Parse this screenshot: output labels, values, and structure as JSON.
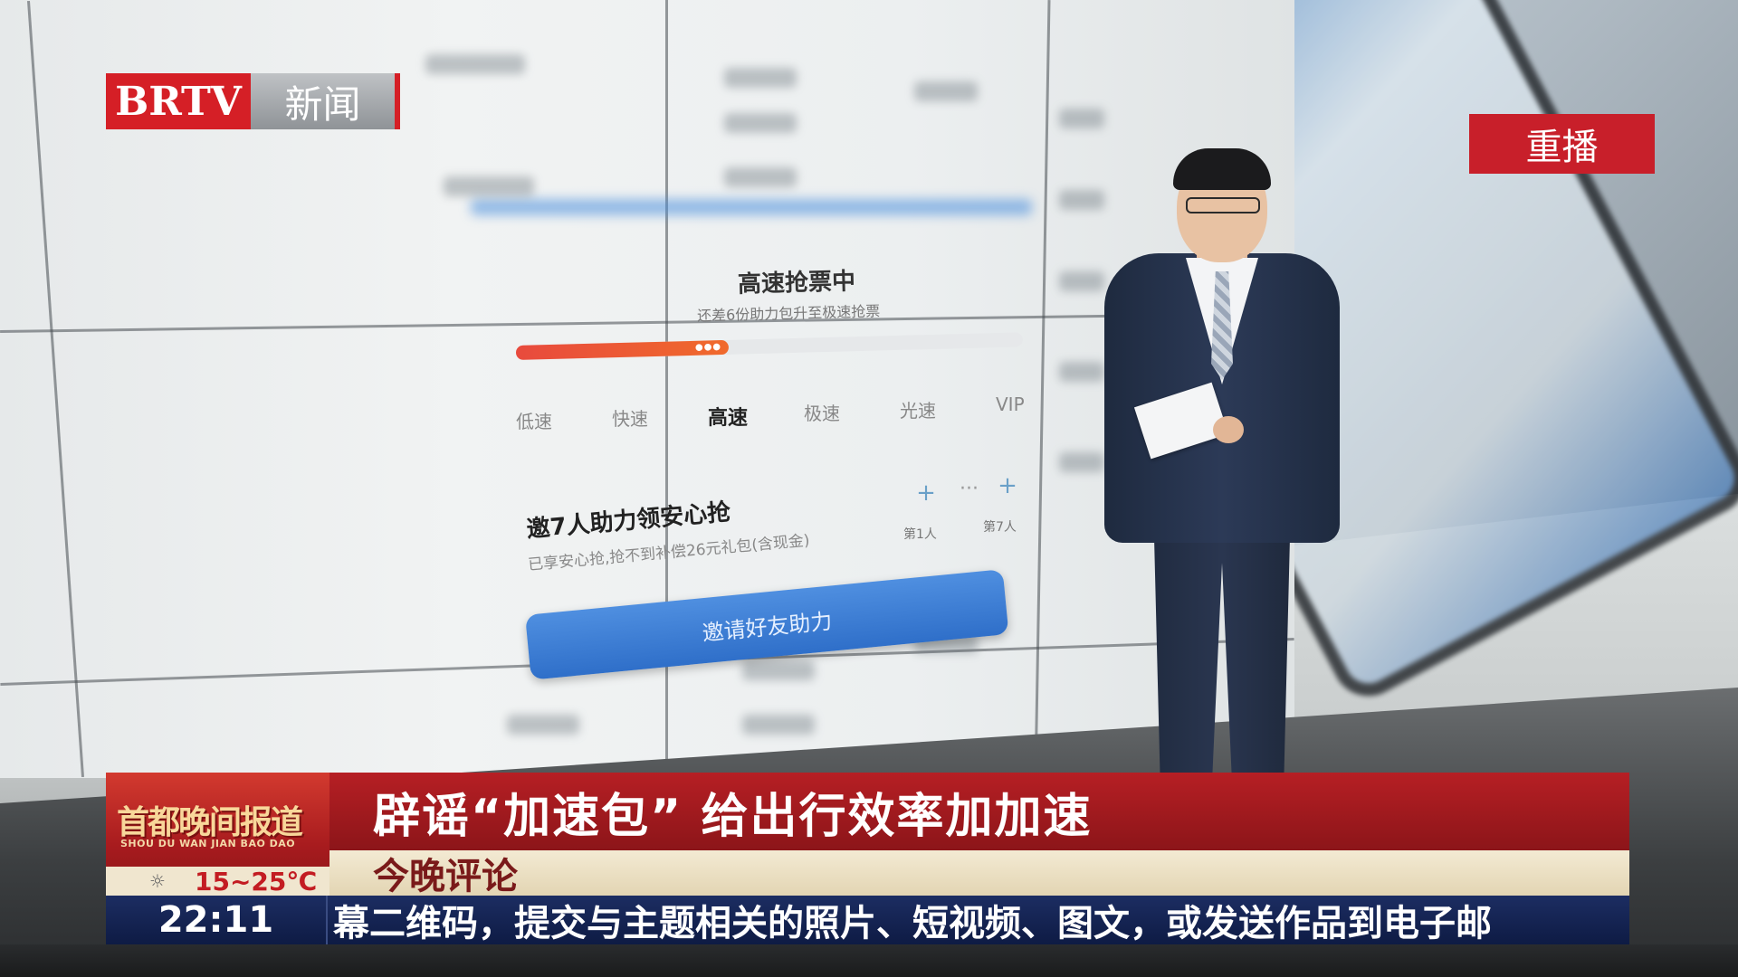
{
  "channel": {
    "brand": "BRTV",
    "name": "新闻"
  },
  "replay_badge": "重播",
  "app_screen": {
    "status_title": "高速抢票中",
    "status_subtitle": "还差6份助力包升至极速抢票",
    "speed_progress": 0.42,
    "speed_levels": [
      "低速",
      "快速",
      "高速",
      "极速",
      "光速",
      "VIP"
    ],
    "active_speed": "高速",
    "invite_title": "邀7人助力领安心抢",
    "invite_subtitle": "已享安心抢,抢不到补偿26元礼包(含现金)",
    "helper_first_label": "第1人",
    "helper_last_label": "第7人",
    "helper_ellipsis": "···",
    "helper_plus": "+",
    "invite_button": "邀请好友助力"
  },
  "program": {
    "title": "首都晚间报道",
    "pinyin": "SHOU DU WAN JIAN BAO DAO"
  },
  "weather": {
    "icon": "sun-icon",
    "temperature": "15~25℃"
  },
  "headline": "辟谣“加速包” 给出行效率加加速",
  "subheadline": "今晚评论",
  "ticker": {
    "time": "22:11",
    "text": "幕二维码，提交与主题相关的照片、短视频、图文，或发送作品到电子邮"
  },
  "colors": {
    "brand_red": "#d51f26",
    "headline_red": "#b61f24",
    "ticker_navy": "#1c2d62",
    "progress_orange": "#e84a3d",
    "button_blue": "#3a7ad4"
  }
}
